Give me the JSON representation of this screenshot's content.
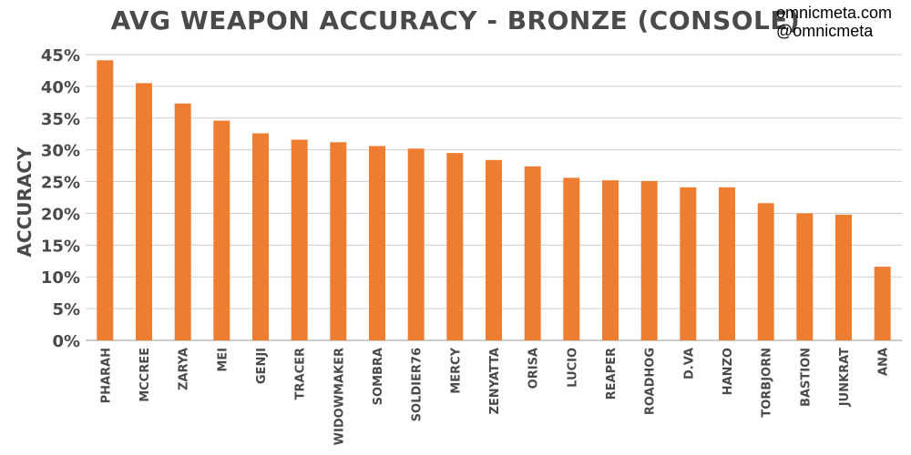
{
  "chart_data": {
    "type": "bar",
    "title": "AVG WEAPON ACCURACY - BRONZE (CONSOLE)",
    "xlabel": "",
    "ylabel": "ACCURACY",
    "ylim": [
      0,
      45
    ],
    "yticks": [
      "0%",
      "5%",
      "10%",
      "15%",
      "20%",
      "25%",
      "30%",
      "35%",
      "40%",
      "45%"
    ],
    "grid": true,
    "bar_color": "#ed7d31",
    "categories": [
      "PHARAH",
      "MCCREE",
      "ZARYA",
      "MEI",
      "GENJI",
      "TRACER",
      "WIDOWMAKER",
      "SOMBRA",
      "SOLDIER76",
      "MERCY",
      "ZENYATTA",
      "ORISA",
      "LUCIO",
      "REAPER",
      "ROADHOG",
      "D.VA",
      "HANZO",
      "TORBJORN",
      "BASTION",
      "JUNKRAT",
      "ANA"
    ],
    "values": [
      44.1,
      40.5,
      37.3,
      34.6,
      32.6,
      31.6,
      31.2,
      30.6,
      30.2,
      29.5,
      28.4,
      27.4,
      25.6,
      25.2,
      25.1,
      24.1,
      24.1,
      21.6,
      20.0,
      19.8,
      11.6
    ]
  },
  "watermark": {
    "site": "omnicmeta.com",
    "handle": "@omnicmeta"
  }
}
